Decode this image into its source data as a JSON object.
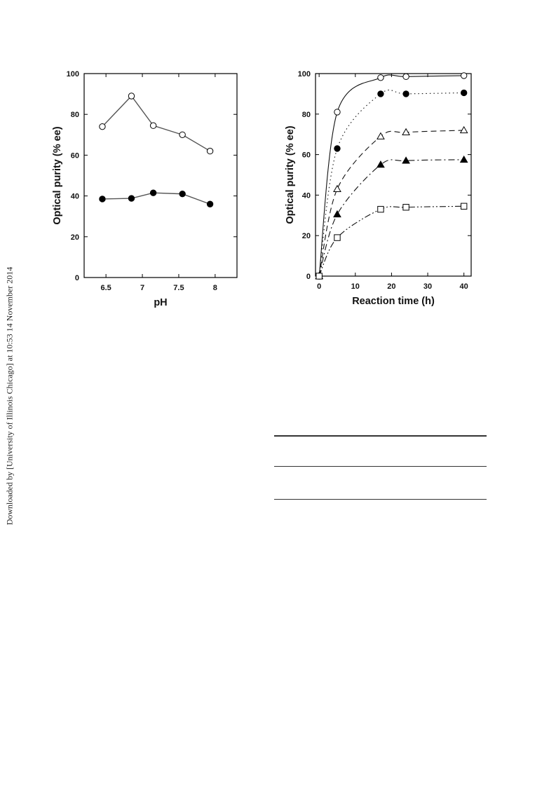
{
  "side_note": "Downloaded by [University of Illinois Chicago] at 10:53 14 November 2014",
  "chart_data": [
    {
      "type": "line",
      "xlabel": "pH",
      "ylabel": "Optical purity (% ee)",
      "xlim": [
        6.2,
        8.3
      ],
      "ylim": [
        0,
        100
      ],
      "x_ticks": [
        6.5,
        7,
        7.5,
        8
      ],
      "x_tick_labels": [
        "6.5",
        "7",
        "7.5",
        "8"
      ],
      "y_ticks": [
        0,
        20,
        40,
        60,
        80,
        100
      ],
      "y_tick_labels": [
        "0",
        "20",
        "40",
        "60",
        "80",
        "100"
      ],
      "grid": false,
      "legend": "none",
      "series": [
        {
          "marker": "open-circle",
          "x": [
            6.45,
            6.85,
            7.15,
            7.55,
            7.93
          ],
          "y": [
            74,
            89,
            74.5,
            70,
            62
          ]
        },
        {
          "marker": "filled-circle",
          "x": [
            6.45,
            6.85,
            7.15,
            7.55,
            7.93
          ],
          "y": [
            38.5,
            38.8,
            41.5,
            41,
            36
          ]
        }
      ]
    },
    {
      "type": "line",
      "xlabel": "Reaction time (h)",
      "ylabel": "Optical purity (% ee)",
      "xlim": [
        -1,
        42
      ],
      "ylim": [
        0,
        100
      ],
      "x_ticks": [
        0,
        10,
        20,
        30,
        40
      ],
      "x_tick_labels": [
        "0",
        "10",
        "20",
        "30",
        "40"
      ],
      "y_ticks": [
        0,
        20,
        40,
        60,
        80,
        100
      ],
      "y_tick_labels": [
        "0",
        "20",
        "40",
        "60",
        "80",
        "100"
      ],
      "grid": false,
      "legend": "none",
      "series": [
        {
          "marker": "open-circle",
          "line": "solid",
          "x": [
            0,
            5,
            17,
            24,
            40
          ],
          "y": [
            0,
            81,
            98,
            98.5,
            99
          ]
        },
        {
          "marker": "filled-circle",
          "line": "dotted",
          "x": [
            0,
            5,
            17,
            24,
            40
          ],
          "y": [
            0,
            63,
            90,
            90,
            90.5
          ]
        },
        {
          "marker": "open-triangle",
          "line": "dashed",
          "x": [
            0,
            5,
            17,
            24,
            40
          ],
          "y": [
            0,
            43,
            69,
            71,
            72
          ]
        },
        {
          "marker": "filled-triangle",
          "line": "dash-dot",
          "x": [
            0,
            5,
            17,
            24,
            40
          ],
          "y": [
            0,
            30.5,
            55,
            57,
            57.5
          ]
        },
        {
          "marker": "open-square",
          "line": "dash-dot-dot",
          "x": [
            0,
            5,
            17,
            24,
            40
          ],
          "y": [
            0,
            19,
            33,
            34,
            34.5
          ]
        }
      ]
    }
  ]
}
